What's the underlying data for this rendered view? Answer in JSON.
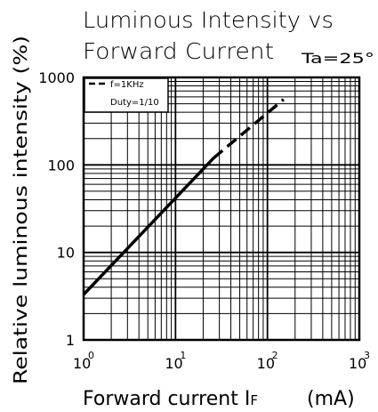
{
  "chart_data": {
    "type": "line",
    "title_line1": "Luminous Intensity vs",
    "title_line2": "Forward Current",
    "condition": "Ta=25°",
    "xlabel": "Forward current I",
    "xlabel_sub": "F",
    "xlabel_unit": "(mA)",
    "ylabel": "Relative luminous intensity (%)",
    "x_scale": "log",
    "y_scale": "log",
    "xlim": [
      1,
      1000
    ],
    "ylim": [
      1,
      1000
    ],
    "x_ticks": [
      {
        "base": "10",
        "exp": "0"
      },
      {
        "base": "10",
        "exp": "1"
      },
      {
        "base": "10",
        "exp": "2"
      },
      {
        "base": "10",
        "exp": "3"
      }
    ],
    "y_ticks": [
      "1",
      "10",
      "100",
      "1000"
    ],
    "grid": true,
    "legend_position": "top-left",
    "legend": {
      "line1": "f=1KHz",
      "line2": "Duty=1/10"
    },
    "series": [
      {
        "style": "solid",
        "x": [
          1,
          26
        ],
        "y": [
          3.3,
          120
        ]
      },
      {
        "style": "dashed",
        "x": [
          26,
          150
        ],
        "y": [
          120,
          560
        ]
      }
    ]
  }
}
